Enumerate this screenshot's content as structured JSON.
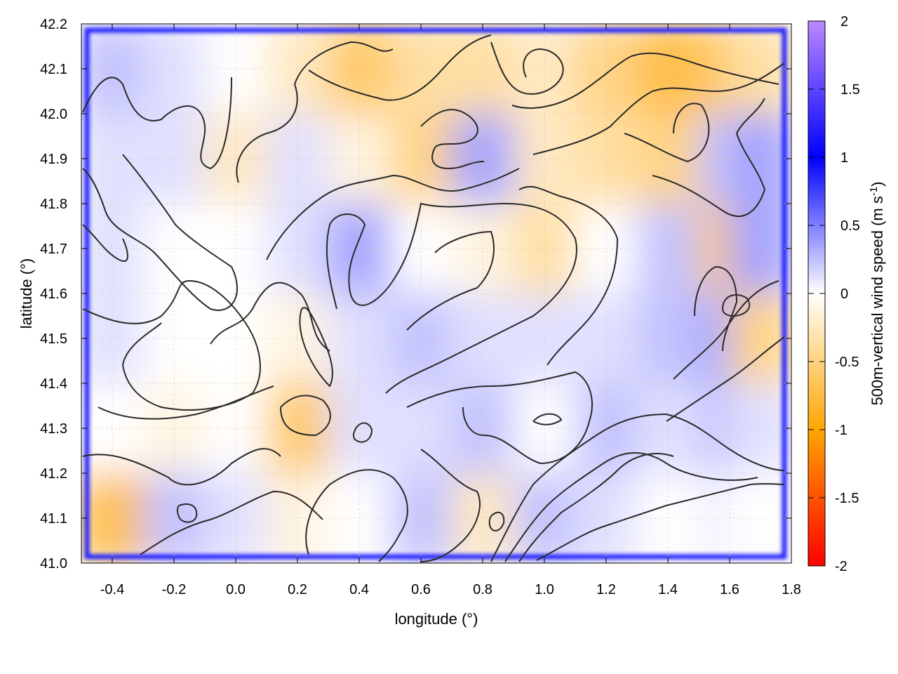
{
  "chart_data": {
    "type": "heatmap",
    "title": "",
    "xlabel": "longitude (°)",
    "ylabel": "latitude (°)",
    "xlim": [
      -0.5,
      1.8
    ],
    "ylim": [
      41.0,
      42.2
    ],
    "xticks": [
      "-0.4",
      "-0.2",
      "0.0",
      "0.2",
      "0.4",
      "0.6",
      "0.8",
      "1.0",
      "1.2",
      "1.4",
      "1.6",
      "1.8"
    ],
    "yticks": [
      "41.0",
      "41.1",
      "41.2",
      "41.3",
      "41.4",
      "41.5",
      "41.6",
      "41.7",
      "41.8",
      "41.9",
      "42.0",
      "42.1",
      "42.2"
    ],
    "grid": true,
    "colorbar": {
      "label": "500m-vertical wind speed (m s",
      "label_sup": "-1",
      "label_end": ")",
      "range": [
        -2,
        2
      ],
      "ticks": [
        "2",
        "1.5",
        "1",
        "0.5",
        "0",
        "-0.5",
        "-1",
        "-1.5",
        "-2"
      ],
      "colors": {
        "-2": "#ff0000",
        "-1": "#ffa500",
        "0": "#ffffff",
        "1": "#0000ff",
        "2": "#bb88ff"
      }
    },
    "approx_grid": {
      "lon": [
        -0.4,
        -0.2,
        0.0,
        0.2,
        0.4,
        0.6,
        0.8,
        1.0,
        1.2,
        1.4,
        1.6,
        1.7
      ],
      "lat": [
        42.1,
        41.9,
        41.7,
        41.5,
        41.3,
        41.1
      ],
      "values": [
        [
          0.2,
          0.1,
          0.0,
          -0.2,
          -0.5,
          -0.3,
          -0.3,
          -0.2,
          -0.4,
          -0.6,
          -0.5,
          -0.3
        ],
        [
          0.1,
          0.1,
          -0.2,
          0.1,
          -0.1,
          -0.4,
          0.3,
          -0.2,
          -0.3,
          -0.4,
          0.2,
          0.3
        ],
        [
          0.1,
          0.0,
          0.0,
          0.1,
          0.3,
          0.0,
          -0.1,
          -0.3,
          0.0,
          0.2,
          -0.5,
          0.3
        ],
        [
          0.1,
          0.0,
          0.0,
          -0.1,
          0.1,
          0.2,
          0.1,
          0.1,
          0.1,
          0.2,
          0.3,
          -0.4
        ],
        [
          0.0,
          -0.1,
          0.0,
          -0.5,
          0.1,
          0.1,
          0.2,
          0.0,
          0.2,
          0.1,
          0.2,
          0.1
        ],
        [
          -0.6,
          0.2,
          0.1,
          -0.1,
          0.0,
          0.2,
          -0.2,
          0.2,
          0.1,
          0.0,
          0.05,
          0.0
        ]
      ],
      "domain_border_value": 1.2
    }
  }
}
